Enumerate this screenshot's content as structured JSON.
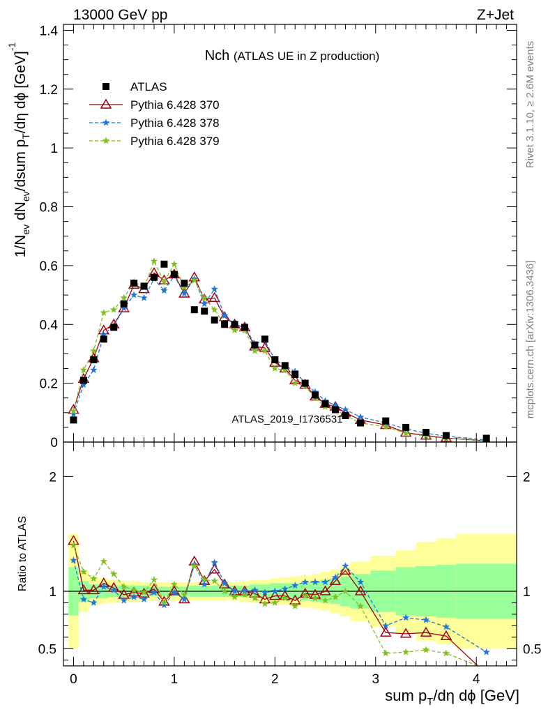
{
  "header": {
    "energy_label": "13000 GeV pp",
    "process_label": "Z+Jet"
  },
  "side_notes": {
    "rivet": "Rivet 3.1.10, ≥ 2.6M events",
    "mcplots": "mcplots.cern.ch [arXiv:1306.3436]"
  },
  "watermark": "ATLAS_2019_I1736531",
  "colors": {
    "data": "#000000",
    "p370": "#a00010",
    "p378": "#1e78dc",
    "p379": "#7fbf1f",
    "band_inner": "#99ff99",
    "band_outer": "#ffff99"
  },
  "chart_data": [
    {
      "type": "line",
      "title": "Nch",
      "subtitle": "(ATLAS UE in Z production)",
      "ylabel": "1/N_ev dN_ev/dsum p_T/dη dϕ [GeV]^-1",
      "xlim": [
        -0.1,
        4.4
      ],
      "ylim": [
        0,
        1.42
      ],
      "yticks": [
        "0",
        "0.2",
        "0.4",
        "0.6",
        "0.8",
        "1",
        "1.2",
        "1.4"
      ],
      "x": [
        0.0,
        0.1,
        0.2,
        0.3,
        0.4,
        0.5,
        0.6,
        0.7,
        0.8,
        0.9,
        1.0,
        1.1,
        1.2,
        1.3,
        1.4,
        1.5,
        1.6,
        1.7,
        1.8,
        1.9,
        2.0,
        2.1,
        2.2,
        2.3,
        2.4,
        2.5,
        2.6,
        2.7,
        2.85,
        3.1,
        3.3,
        3.5,
        3.7,
        4.1
      ],
      "legend_position": "top-left",
      "series": [
        {
          "name": "ATLAS",
          "marker": "square",
          "values": [
            0.075,
            0.21,
            0.28,
            0.35,
            0.39,
            0.47,
            0.54,
            0.53,
            0.56,
            0.605,
            0.57,
            0.54,
            0.45,
            0.445,
            0.415,
            0.4,
            0.4,
            0.39,
            0.33,
            0.35,
            0.28,
            0.26,
            0.23,
            0.2,
            0.16,
            0.13,
            0.11,
            0.09,
            0.065,
            0.072,
            0.05,
            0.033,
            0.022,
            0.013
          ]
        },
        {
          "name": "Pythia 6.428 370",
          "marker": "triangle",
          "values": [
            0.11,
            0.215,
            0.285,
            0.38,
            0.4,
            0.455,
            0.535,
            0.52,
            0.575,
            0.55,
            0.57,
            0.505,
            0.56,
            0.485,
            0.49,
            0.425,
            0.4,
            0.39,
            0.325,
            0.32,
            0.27,
            0.25,
            0.21,
            0.195,
            0.155,
            0.13,
            0.12,
            0.1,
            0.075,
            0.058,
            0.032,
            0.022,
            0.014,
            0.004
          ]
        },
        {
          "name": "Pythia 6.428 378",
          "marker": "star",
          "values": [
            0.095,
            0.195,
            0.245,
            0.365,
            0.395,
            0.455,
            0.5,
            0.49,
            0.555,
            0.515,
            0.565,
            0.505,
            0.555,
            0.47,
            0.52,
            0.43,
            0.4,
            0.39,
            0.335,
            0.345,
            0.28,
            0.26,
            0.24,
            0.2,
            0.17,
            0.14,
            0.125,
            0.11,
            0.085,
            0.065,
            0.045,
            0.03,
            0.02,
            0.007
          ]
        },
        {
          "name": "Pythia 6.428 379",
          "marker": "star",
          "values": [
            0.105,
            0.245,
            0.31,
            0.44,
            0.45,
            0.49,
            0.545,
            0.525,
            0.615,
            0.545,
            0.605,
            0.525,
            0.55,
            0.49,
            0.45,
            0.4,
            0.38,
            0.38,
            0.31,
            0.31,
            0.25,
            0.245,
            0.2,
            0.19,
            0.15,
            0.12,
            0.11,
            0.09,
            0.065,
            0.052,
            0.03,
            0.02,
            0.013,
            0.004
          ]
        }
      ],
      "legend": [
        "ATLAS",
        "Pythia 6.428 370",
        "Pythia 6.428 378",
        "Pythia 6.428 379"
      ]
    },
    {
      "type": "line",
      "ylabel": "Ratio to ATLAS",
      "xlabel": "sum p_T/dη dϕ [GeV]",
      "xlim": [
        -0.1,
        4.4
      ],
      "ylim": [
        0.35,
        2.3
      ],
      "yticks": [
        "0.5",
        "1",
        "2"
      ],
      "xticks": [
        "0",
        "1",
        "2",
        "3",
        "4"
      ],
      "reference": 1.0,
      "band_edges": [
        -0.05,
        0.05,
        0.15,
        0.25,
        0.35,
        0.45,
        0.55,
        0.65,
        0.75,
        0.85,
        0.95,
        1.05,
        1.15,
        1.25,
        1.35,
        1.45,
        1.55,
        1.65,
        1.75,
        1.85,
        1.95,
        2.05,
        2.15,
        2.25,
        2.35,
        2.45,
        2.55,
        2.65,
        2.75,
        2.95,
        3.2,
        3.4,
        3.6,
        3.8,
        4.4
      ],
      "band_inner": [
        0.21,
        0.09,
        0.06,
        0.06,
        0.05,
        0.05,
        0.05,
        0.05,
        0.04,
        0.04,
        0.04,
        0.04,
        0.05,
        0.05,
        0.05,
        0.05,
        0.05,
        0.05,
        0.06,
        0.06,
        0.07,
        0.07,
        0.07,
        0.08,
        0.09,
        0.1,
        0.11,
        0.13,
        0.15,
        0.18,
        0.21,
        0.22,
        0.23,
        0.24
      ],
      "band_outer": [
        0.5,
        0.18,
        0.12,
        0.11,
        0.1,
        0.09,
        0.09,
        0.08,
        0.08,
        0.08,
        0.08,
        0.08,
        0.08,
        0.08,
        0.08,
        0.08,
        0.08,
        0.09,
        0.1,
        0.1,
        0.11,
        0.12,
        0.13,
        0.14,
        0.15,
        0.17,
        0.19,
        0.22,
        0.26,
        0.31,
        0.36,
        0.43,
        0.46,
        0.5
      ],
      "series": [
        {
          "name": "Pythia 6.428 370",
          "values": [
            1.44,
            1.01,
            1.01,
            1.07,
            1.03,
            0.97,
            0.99,
            0.98,
            1.02,
            0.91,
            1.0,
            0.93,
            1.26,
            1.09,
            1.19,
            1.06,
            1.0,
            1.0,
            0.98,
            0.93,
            0.96,
            0.96,
            0.92,
            0.98,
            0.97,
            1.0,
            1.09,
            1.18,
            1.0,
            0.64,
            0.63,
            0.64,
            0.61,
            0.28
          ]
        },
        {
          "name": "Pythia 6.428 378",
          "values": [
            1.27,
            0.93,
            0.9,
            1.04,
            1.01,
            0.92,
            0.95,
            0.93,
            0.99,
            0.88,
            0.99,
            0.93,
            1.23,
            1.06,
            1.25,
            1.07,
            1.0,
            1.0,
            1.01,
            0.99,
            1.0,
            1.02,
            1.05,
            1.08,
            1.08,
            1.08,
            1.12,
            1.22,
            1.08,
            0.7,
            0.77,
            0.75,
            0.69,
            0.47
          ]
        },
        {
          "name": "Pythia 6.428 379",
          "values": [
            1.4,
            1.17,
            1.11,
            1.26,
            1.15,
            1.04,
            1.01,
            0.99,
            1.1,
            0.9,
            1.06,
            0.97,
            1.22,
            1.1,
            1.09,
            1.0,
            0.95,
            0.97,
            0.94,
            0.89,
            0.9,
            0.94,
            0.87,
            0.96,
            0.94,
            0.92,
            0.95,
            1.0,
            0.87,
            0.46,
            0.47,
            0.49,
            0.46,
            0.32
          ]
        }
      ]
    }
  ]
}
